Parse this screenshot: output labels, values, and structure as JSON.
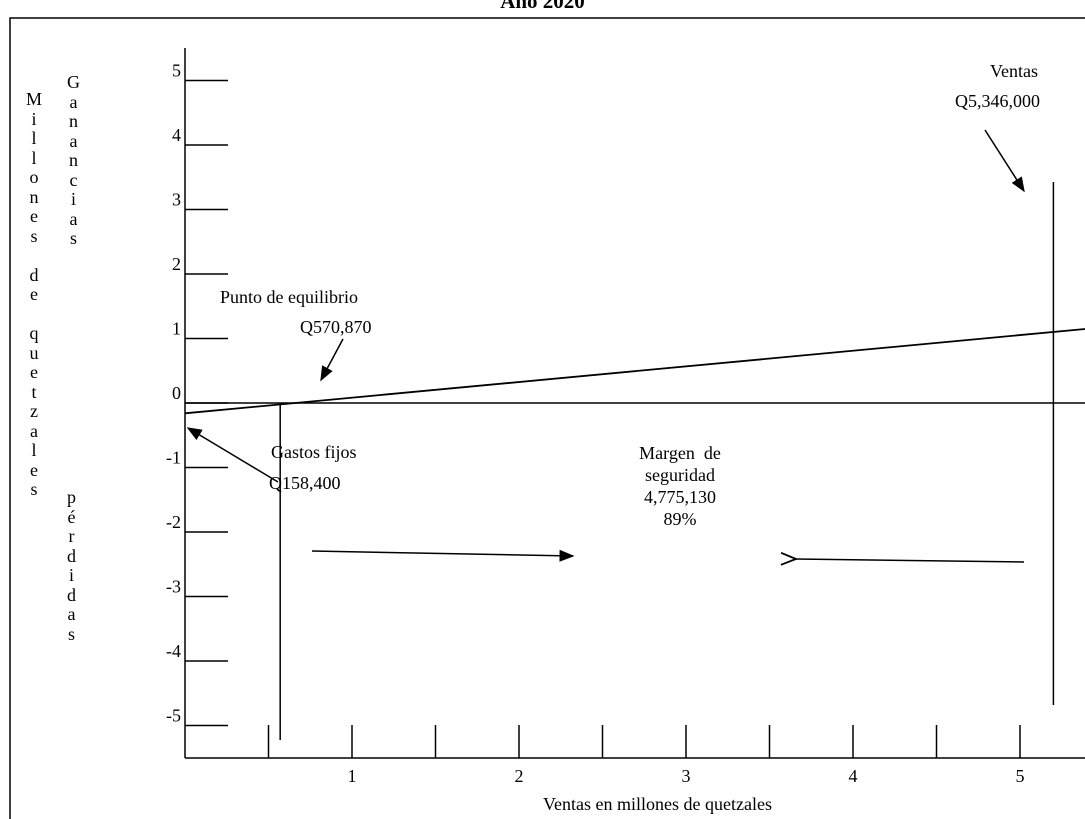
{
  "chart_data": {
    "type": "line",
    "title": "Año 2020",
    "xlabel": "Ventas en millones de quetzales",
    "ylabel": "Millones de quetzales",
    "ylabel_upper": "Ganancias",
    "ylabel_lower": "pérdidas",
    "x_ticks": [
      "1",
      "2",
      "3",
      "4",
      "5"
    ],
    "y_ticks": [
      "5",
      "4",
      "3",
      "2",
      "1",
      "0",
      "-1",
      "-2",
      "-3",
      "-4",
      "-5"
    ],
    "xlim": [
      0,
      5.4
    ],
    "ylim": [
      -5.5,
      5.5
    ],
    "grid": false,
    "series": [
      {
        "x": [
          0,
          5.4
        ],
        "y": [
          -0.16,
          1.15
        ]
      }
    ],
    "reference_lines": [
      {
        "orientation": "vertical",
        "x": 0.57
      },
      {
        "orientation": "vertical",
        "x": 5.2
      }
    ],
    "annotations": {
      "break_even": {
        "label": "Punto de equilibrio",
        "value": "Q570,870"
      },
      "fixed_costs": {
        "label": "Gastos fijos",
        "value": "Q158,400"
      },
      "sales": {
        "label": "Ventas",
        "value": "Q5,346,000"
      },
      "margin": {
        "label_1": "Margen  de",
        "label_2": "seguridad",
        "value": "4,775,130",
        "percent": "89%"
      }
    }
  }
}
